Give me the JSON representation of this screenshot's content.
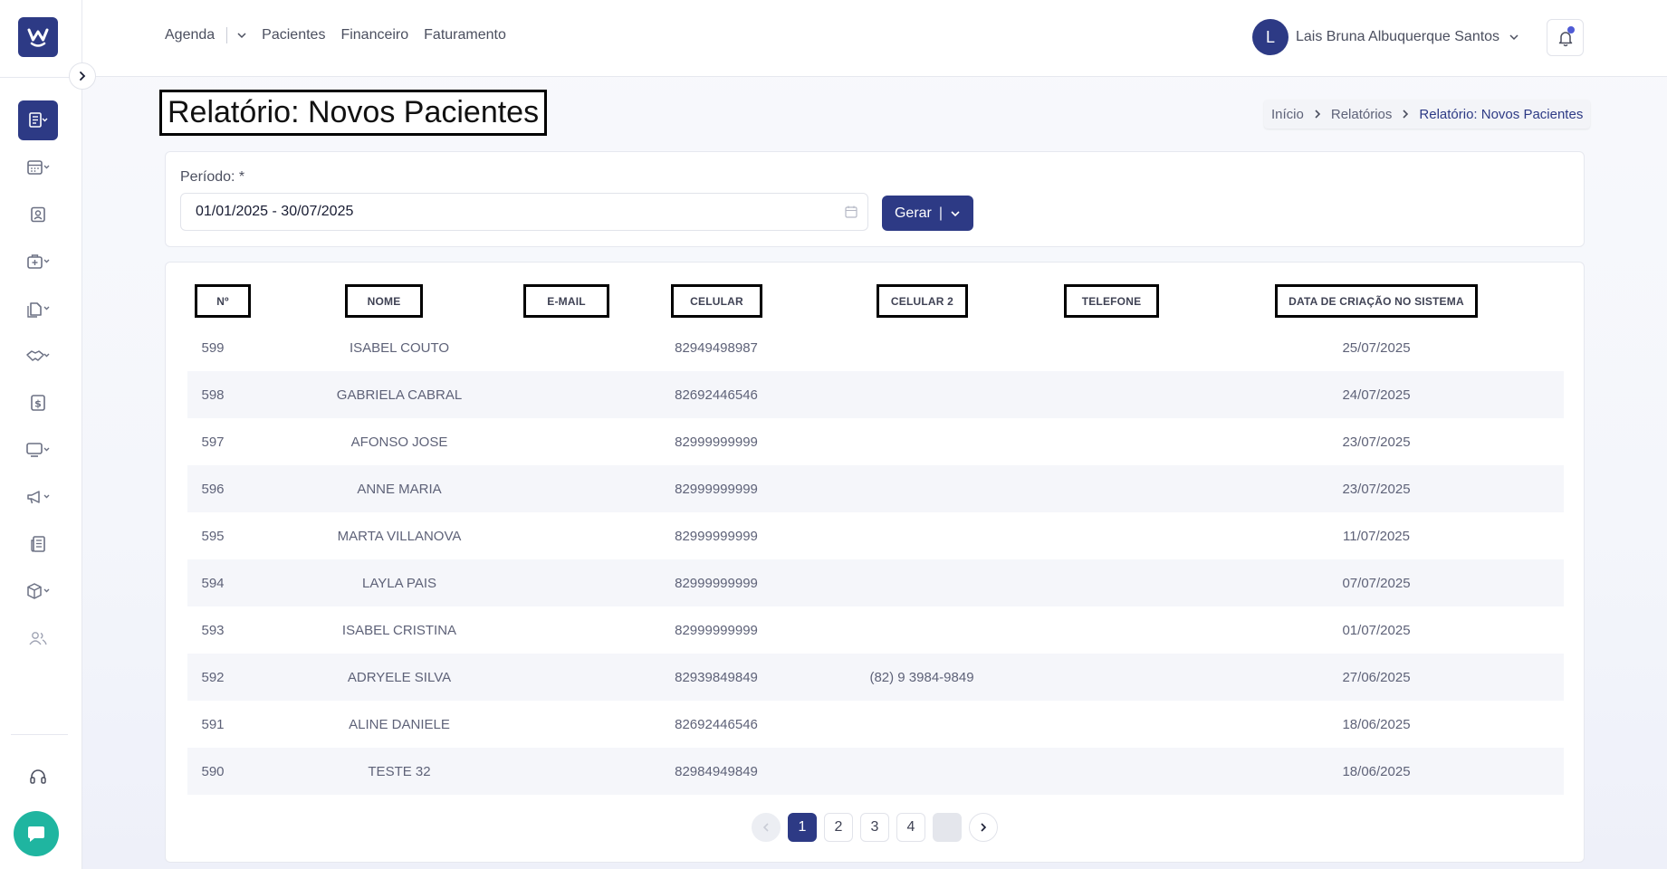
{
  "topnav": {
    "items": [
      "Agenda",
      "Pacientes",
      "Financeiro",
      "Faturamento"
    ]
  },
  "user": {
    "initial": "L",
    "name": "Lais Bruna Albuquerque Santos"
  },
  "page": {
    "title": "Relatório: Novos Pacientes"
  },
  "breadcrumb": [
    "Início",
    "Relatórios",
    "Relatório: Novos Pacientes"
  ],
  "filter": {
    "label": "Período: *",
    "value": "01/01/2025 - 30/07/2025",
    "button": "Gerar"
  },
  "table": {
    "columns": [
      "Nº",
      "NOME",
      "E-MAIL",
      "CELULAR",
      "CELULAR 2",
      "TELEFONE",
      "DATA DE CRIAÇÃO NO SISTEMA"
    ],
    "rows": [
      [
        "599",
        "ISABEL COUTO",
        "",
        "82949498987",
        "",
        "",
        "25/07/2025"
      ],
      [
        "598",
        "GABRIELA CABRAL",
        "",
        "82692446546",
        "",
        "",
        "24/07/2025"
      ],
      [
        "597",
        "AFONSO JOSE",
        "",
        "82999999999",
        "",
        "",
        "23/07/2025"
      ],
      [
        "596",
        "ANNE MARIA",
        "",
        "82999999999",
        "",
        "",
        "23/07/2025"
      ],
      [
        "595",
        "MARTA VILLANOVA",
        "",
        "82999999999",
        "",
        "",
        "11/07/2025"
      ],
      [
        "594",
        "LAYLA PAIS",
        "",
        "82999999999",
        "",
        "",
        "07/07/2025"
      ],
      [
        "593",
        "ISABEL CRISTINA",
        "",
        "82999999999",
        "",
        "",
        "01/07/2025"
      ],
      [
        "592",
        "ADRYELE SILVA",
        "",
        "82939849849",
        "(82) 9 3984-9849",
        "",
        "27/06/2025"
      ],
      [
        "591",
        "ALINE DANIELE",
        "",
        "82692446546",
        "",
        "",
        "18/06/2025"
      ],
      [
        "590",
        "TESTE 32",
        "",
        "82984949849",
        "",
        "",
        "18/06/2025"
      ]
    ]
  },
  "pagination": {
    "pages": [
      "1",
      "2",
      "3",
      "4"
    ],
    "current": "1"
  },
  "colors": {
    "primary": "#2d3a85",
    "chat": "#1fb5a0",
    "row_alt": "#f5f6fa"
  },
  "sidebar": {
    "icons": [
      "reports-icon",
      "calendar-icon",
      "patient-icon",
      "clinic-icon",
      "documents-icon",
      "handshake-icon",
      "finance-icon",
      "monitor-icon",
      "megaphone-icon",
      "newspaper-icon",
      "box-icon",
      "users-icon",
      "support-icon",
      "chat-icon"
    ]
  }
}
